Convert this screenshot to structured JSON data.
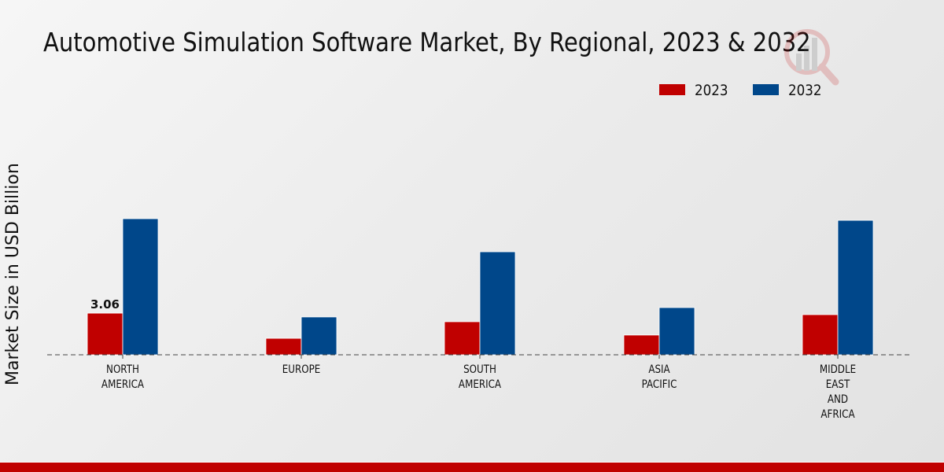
{
  "chart_data": {
    "type": "bar",
    "title": "Automotive Simulation Software Market, By Regional, 2023 & 2032",
    "xlabel": "",
    "ylabel": "Market Size in USD Billion",
    "categories": [
      [
        "NORTH",
        "AMERICA"
      ],
      [
        "EUROPE"
      ],
      [
        "SOUTH",
        "AMERICA"
      ],
      [
        "ASIA",
        "PACIFIC"
      ],
      [
        "MIDDLE",
        "EAST",
        "AND",
        "AFRICA"
      ]
    ],
    "series": [
      {
        "name": "2023",
        "color": "#c00000",
        "values": [
          3.06,
          1.21,
          2.43,
          1.45,
          2.95
        ]
      },
      {
        "name": "2032",
        "color": "#00478a",
        "values": [
          10.0,
          2.78,
          7.57,
          3.47,
          9.88
        ]
      }
    ],
    "data_labels": [
      {
        "series": 0,
        "index": 0,
        "text": "3.06"
      }
    ],
    "ylim": [
      0,
      11.5
    ],
    "grid": false,
    "baseline_style": "dashed",
    "legend_position": "top-right"
  }
}
